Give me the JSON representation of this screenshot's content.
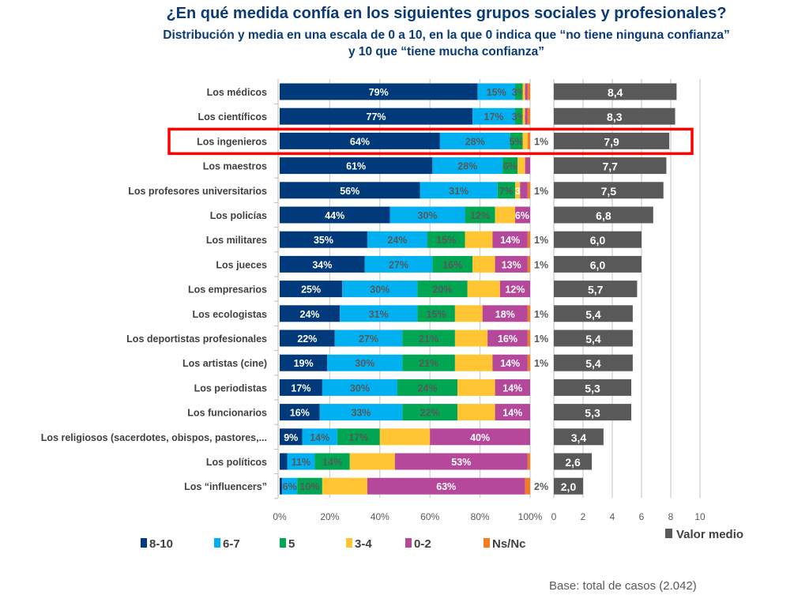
{
  "header": {
    "title": "¿En qué medida confía en los siguientes grupos sociales y profesionales?",
    "subtitle_line1": "Distribución y media en una escala de 0 a 10, en la que 0 indica que “no tiene ninguna confianza”",
    "subtitle_line2": "y 10 que “tiene mucha confianza”"
  },
  "footer": {
    "base": "Base: total de casos (2.042)"
  },
  "highlight": {
    "row": "Los ingenieros",
    "color": "#FF0000"
  },
  "chart_data": [
    {
      "type": "bar",
      "orientation": "horizontal-stacked-100",
      "categories": [
        "Los médicos",
        "Los científicos",
        "Los ingenieros",
        "Los maestros",
        "Los profesores universitarios",
        "Los policías",
        "Los militares",
        "Los jueces",
        "Los empresarios",
        "Los ecologistas",
        "Los deportistas profesionales",
        "Los artistas (cine)",
        "Los periodistas",
        "Los funcionarios",
        "Los religiosos (sacerdotes, obispos, pastores,...",
        "Los políticos",
        "Los “influencers”"
      ],
      "series": [
        {
          "name": "8-10",
          "color": "#003A7A",
          "values": [
            79,
            77,
            64,
            61,
            56,
            44,
            35,
            34,
            25,
            24,
            22,
            19,
            17,
            16,
            9,
            3,
            1
          ]
        },
        {
          "name": "6-7",
          "color": "#00B0F0",
          "values": [
            15,
            17,
            28,
            28,
            31,
            30,
            24,
            27,
            30,
            31,
            27,
            30,
            30,
            33,
            14,
            11,
            6
          ]
        },
        {
          "name": "5",
          "color": "#00A651",
          "values": [
            3,
            3,
            5,
            6,
            7,
            12,
            15,
            16,
            20,
            15,
            21,
            21,
            24,
            22,
            17,
            14,
            10
          ]
        },
        {
          "name": "3-4",
          "color": "#FFC533",
          "values": [
            1,
            1,
            2,
            3,
            2,
            8,
            11,
            9,
            13,
            11,
            13,
            15,
            15,
            15,
            20,
            18,
            18
          ]
        },
        {
          "name": "0-2",
          "color": "#B5489A",
          "values": [
            1,
            1,
            0,
            2,
            3,
            6,
            14,
            13,
            12,
            18,
            16,
            14,
            14,
            14,
            40,
            53,
            63
          ]
        },
        {
          "name": "Ns/Nc",
          "color": "#F47B20",
          "values": [
            1,
            1,
            1,
            0,
            1,
            0,
            1,
            1,
            0,
            1,
            1,
            1,
            0,
            0,
            0,
            1,
            2
          ]
        }
      ],
      "data_labels": [
        [
          "79%",
          "15%",
          "3%",
          "",
          "",
          ""
        ],
        [
          "77%",
          "17%",
          "3%",
          "",
          "",
          ""
        ],
        [
          "64%",
          "28%",
          "5%",
          "",
          "",
          ""
        ],
        [
          "61%",
          "28%",
          "6%",
          "",
          "",
          ""
        ],
        [
          "56%",
          "31%",
          "7%",
          "3%",
          "",
          ""
        ],
        [
          "44%",
          "30%",
          "12%",
          "",
          "6%",
          ""
        ],
        [
          "35%",
          "24%",
          "15%",
          "",
          "14%",
          ""
        ],
        [
          "34%",
          "27%",
          "16%",
          "",
          "13%",
          "1%"
        ],
        [
          "25%",
          "30%",
          "20%",
          "",
          "12%",
          ""
        ],
        [
          "24%",
          "31%",
          "15%",
          "",
          "18%",
          "1%"
        ],
        [
          "22%",
          "27%",
          "21%",
          "",
          "16%",
          "1%"
        ],
        [
          "19%",
          "30%",
          "21%",
          "",
          "14%",
          "1%"
        ],
        [
          "17%",
          "30%",
          "24%",
          "",
          "14%",
          ""
        ],
        [
          "16%",
          "33%",
          "22%",
          "",
          "14%",
          ""
        ],
        [
          "9%",
          "14%",
          "17%",
          "",
          "40%",
          ""
        ],
        [
          "",
          "11%",
          "14%",
          "",
          "53%",
          ""
        ],
        [
          "",
          "6%",
          "10%",
          "",
          "63%",
          "2%"
        ]
      ],
      "outside_labels": [
        "",
        "",
        "1%",
        "",
        "1%",
        "",
        "1%",
        "",
        "",
        "",
        "",
        "",
        "",
        "",
        "",
        "",
        ""
      ],
      "xticks": [
        "0%",
        "20%",
        "40%",
        "60%",
        "80%",
        "100%"
      ],
      "xlim": [
        0,
        100
      ],
      "grid": true,
      "legend": {
        "placement": "bottom",
        "entries": [
          "8-10",
          "6-7",
          "5",
          "3-4",
          "0-2",
          "Ns/Nc"
        ]
      }
    },
    {
      "type": "bar",
      "orientation": "horizontal",
      "categories": [
        "Los médicos",
        "Los científicos",
        "Los ingenieros",
        "Los maestros",
        "Los profesores universitarios",
        "Los policías",
        "Los militares",
        "Los jueces",
        "Los empresarios",
        "Los ecologistas",
        "Los deportistas profesionales",
        "Los artistas (cine)",
        "Los periodistas",
        "Los funcionarios",
        "Los religiosos (sacerdotes, obispos, pastores,...",
        "Los políticos",
        "Los “influencers”"
      ],
      "series": [
        {
          "name": "Valor medio",
          "color": "#595959",
          "values": [
            8.4,
            8.3,
            7.9,
            7.7,
            7.5,
            6.8,
            6.0,
            6.0,
            5.7,
            5.4,
            5.4,
            5.4,
            5.3,
            5.3,
            3.4,
            2.6,
            2.0
          ]
        }
      ],
      "value_labels": [
        "8,4",
        "8,3",
        "7,9",
        "7,7",
        "7,5",
        "6,8",
        "6,0",
        "6,0",
        "5,7",
        "5,4",
        "5,4",
        "5,4",
        "5,3",
        "5,3",
        "3,4",
        "2,6",
        "2,0"
      ],
      "xticks": [
        "0",
        "2",
        "4",
        "6",
        "8",
        "10"
      ],
      "xlim": [
        0,
        10
      ],
      "grid": true,
      "legend": {
        "placement": "bottom-right",
        "entries": [
          "Valor medio"
        ]
      }
    }
  ]
}
